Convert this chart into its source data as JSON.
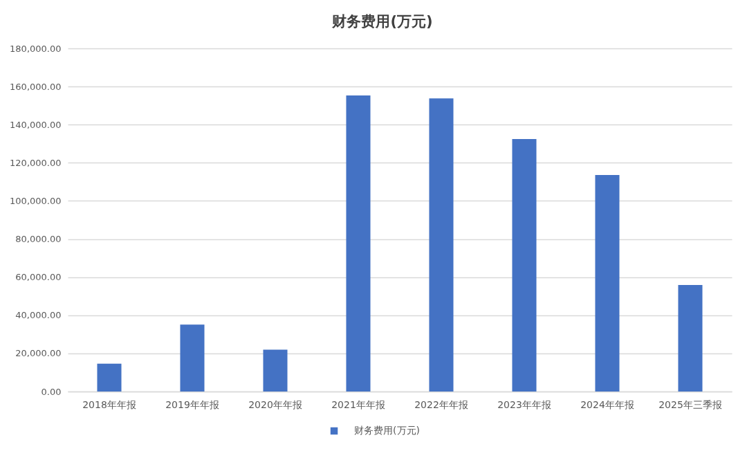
{
  "chart_data": {
    "type": "bar",
    "title": "财务费用(万元)",
    "categories": [
      "2018年年报",
      "2019年年报",
      "2020年年报",
      "2021年年报",
      "2022年年报",
      "2023年年报",
      "2024年年报",
      "2025年三季报"
    ],
    "series": [
      {
        "name": "财务费用(万元)",
        "color": "#4472c4",
        "values": [
          14600,
          35100,
          22000,
          155300,
          153800,
          132500,
          113600,
          55900
        ]
      }
    ],
    "ylim": [
      0,
      180000
    ],
    "yticks": [
      {
        "value": 0,
        "label": "0.00"
      },
      {
        "value": 20000,
        "label": "20,000.00"
      },
      {
        "value": 40000,
        "label": "40,000.00"
      },
      {
        "value": 60000,
        "label": "60,000.00"
      },
      {
        "value": 80000,
        "label": "80,000.00"
      },
      {
        "value": 100000,
        "label": "100,000.00"
      },
      {
        "value": 120000,
        "label": "120,000.00"
      },
      {
        "value": 140000,
        "label": "140,000.00"
      },
      {
        "value": 160000,
        "label": "160,000.00"
      },
      {
        "value": 180000,
        "label": "180,000.00"
      }
    ],
    "grid": "y",
    "legend": "bottom"
  }
}
